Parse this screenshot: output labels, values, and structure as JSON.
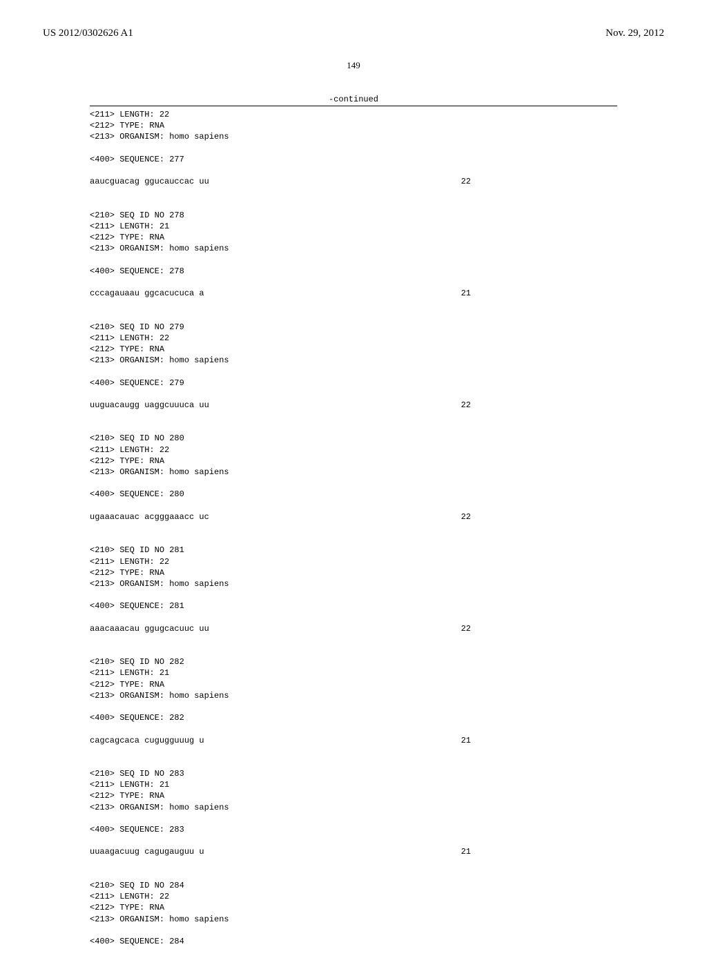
{
  "header": {
    "publication": "US 2012/0302626 A1",
    "date": "Nov. 29, 2012"
  },
  "page_number": "149",
  "continued_label": "-continued",
  "entries": [
    {
      "header": [
        "<211> LENGTH: 22",
        "<212> TYPE: RNA",
        "<213> ORGANISM: homo sapiens"
      ],
      "seq_label": "<400> SEQUENCE: 277",
      "sequence": "aaucguacag ggucauccac uu",
      "count": "22"
    },
    {
      "header": [
        "<210> SEQ ID NO 278",
        "<211> LENGTH: 21",
        "<212> TYPE: RNA",
        "<213> ORGANISM: homo sapiens"
      ],
      "seq_label": "<400> SEQUENCE: 278",
      "sequence": "cccagauaau ggcacucuca a",
      "count": "21"
    },
    {
      "header": [
        "<210> SEQ ID NO 279",
        "<211> LENGTH: 22",
        "<212> TYPE: RNA",
        "<213> ORGANISM: homo sapiens"
      ],
      "seq_label": "<400> SEQUENCE: 279",
      "sequence": "uuguacaugg uaggcuuuca uu",
      "count": "22"
    },
    {
      "header": [
        "<210> SEQ ID NO 280",
        "<211> LENGTH: 22",
        "<212> TYPE: RNA",
        "<213> ORGANISM: homo sapiens"
      ],
      "seq_label": "<400> SEQUENCE: 280",
      "sequence": "ugaaacauac acgggaaacc uc",
      "count": "22"
    },
    {
      "header": [
        "<210> SEQ ID NO 281",
        "<211> LENGTH: 22",
        "<212> TYPE: RNA",
        "<213> ORGANISM: homo sapiens"
      ],
      "seq_label": "<400> SEQUENCE: 281",
      "sequence": "aaacaaacau ggugcacuuc uu",
      "count": "22"
    },
    {
      "header": [
        "<210> SEQ ID NO 282",
        "<211> LENGTH: 21",
        "<212> TYPE: RNA",
        "<213> ORGANISM: homo sapiens"
      ],
      "seq_label": "<400> SEQUENCE: 282",
      "sequence": "cagcagcaca cugugguuug u",
      "count": "21"
    },
    {
      "header": [
        "<210> SEQ ID NO 283",
        "<211> LENGTH: 21",
        "<212> TYPE: RNA",
        "<213> ORGANISM: homo sapiens"
      ],
      "seq_label": "<400> SEQUENCE: 283",
      "sequence": "uuaagacuug cagugauguu u",
      "count": "21"
    },
    {
      "header": [
        "<210> SEQ ID NO 284",
        "<211> LENGTH: 22",
        "<212> TYPE: RNA",
        "<213> ORGANISM: homo sapiens"
      ],
      "seq_label": "<400> SEQUENCE: 284",
      "sequence": "",
      "count": ""
    }
  ]
}
